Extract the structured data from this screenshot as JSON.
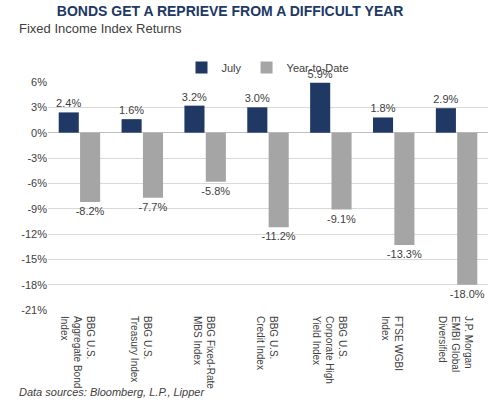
{
  "chart_data": {
    "type": "bar",
    "title": "BONDS GET A REPRIEVE FROM A DIFFICULT YEAR",
    "subtitle": "Fixed Income Index Returns",
    "source": "Data sources: Bloomberg, L.P., Lipper",
    "categories": [
      "BBG U.S. Aggregate Bond Index",
      "BBG U.S. Treasury Index",
      "BBG Fixed-Rate MBS Index",
      "BBG U.S. Credit Index",
      "BBG U.S. Corporate High Yield Index",
      "FTSE WGBI Index",
      "J.P. Morgan EMBI Global Diversified"
    ],
    "series": [
      {
        "name": "July",
        "color": "#203864",
        "values": [
          2.4,
          1.6,
          3.2,
          3.0,
          5.9,
          1.8,
          2.9
        ],
        "value_labels": [
          "2.4%",
          "1.6%",
          "3.2%",
          "3.0%",
          "5.9%",
          "1.8%",
          "2.9%"
        ]
      },
      {
        "name": "Year-to-Date",
        "color": "#a5a5a5",
        "values": [
          -8.2,
          -7.7,
          -5.8,
          -11.2,
          -9.1,
          -13.3,
          -18.0
        ],
        "value_labels": [
          "-8.2%",
          "-7.7%",
          "-5.8%",
          "-11.2%",
          "-9.1%",
          "-13.3%",
          "-18.0%"
        ]
      }
    ],
    "ylim": [
      -21,
      6
    ],
    "yticks": [
      {
        "value": -21,
        "label": "-21%"
      },
      {
        "value": -18,
        "label": "-18%"
      },
      {
        "value": -15,
        "label": "-15%"
      },
      {
        "value": -12,
        "label": "-12%"
      },
      {
        "value": -9,
        "label": "-9%"
      },
      {
        "value": -6,
        "label": "-6%"
      },
      {
        "value": -3,
        "label": "-3%"
      },
      {
        "value": 0,
        "label": "0%"
      },
      {
        "value": 3,
        "label": "3%"
      },
      {
        "value": 6,
        "label": "6%"
      }
    ],
    "grid": true,
    "legend": "top",
    "data_labels": true
  }
}
